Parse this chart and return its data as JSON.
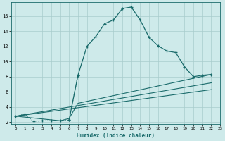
{
  "xlabel": "Humidex (Indice chaleur)",
  "bg_color": "#ceeaea",
  "grid_color": "#a8cccc",
  "line_color": "#1a6b6b",
  "main_x": [
    0,
    1,
    2,
    3,
    4,
    5,
    6,
    7,
    8,
    9,
    10,
    11,
    12,
    13,
    14,
    15,
    16,
    17,
    18,
    19,
    20,
    21,
    22
  ],
  "main_y": [
    2.8,
    3.1,
    2.1,
    2.2,
    2.2,
    2.2,
    2.3,
    8.2,
    12.0,
    13.3,
    15.0,
    15.5,
    17.0,
    17.2,
    15.5,
    13.2,
    12.1,
    11.4,
    11.2,
    9.3,
    8.0,
    8.2,
    8.3
  ],
  "dotted_x": [
    0,
    1,
    2,
    3,
    4,
    5,
    6,
    7
  ],
  "dotted_y": [
    2.8,
    3.1,
    2.1,
    2.2,
    2.2,
    2.2,
    2.3,
    8.2
  ],
  "line2_x": [
    0,
    5,
    6,
    7,
    22
  ],
  "line2_y": [
    2.8,
    2.2,
    2.5,
    4.5,
    8.3
  ],
  "line3_x": [
    0,
    22
  ],
  "line3_y": [
    2.8,
    7.2
  ],
  "line4_x": [
    0,
    22
  ],
  "line4_y": [
    2.8,
    6.3
  ],
  "xlim": [
    -0.5,
    23
  ],
  "ylim": [
    1.8,
    17.8
  ],
  "yticks": [
    2,
    4,
    6,
    8,
    10,
    12,
    14,
    16
  ],
  "xticks": [
    0,
    1,
    2,
    3,
    4,
    5,
    6,
    7,
    8,
    9,
    10,
    11,
    12,
    13,
    14,
    15,
    16,
    17,
    18,
    19,
    20,
    21,
    22,
    23
  ]
}
